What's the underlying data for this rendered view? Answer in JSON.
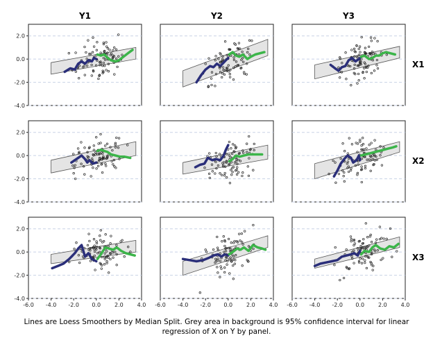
{
  "caption": {
    "line1": "Lines are Loess Smoothers by Median Split. Grey area in background is 95% confidence interval for linear",
    "line2": "regression of X on Y by panel."
  },
  "colors": {
    "low_split": "#2b2f7a",
    "high_split": "#3cb54a",
    "ci_fill": "#e4e4e4",
    "ci_stroke": "#555555",
    "grid": "#c8d2e6",
    "points": "#222222"
  },
  "chart_data": {
    "type": "scatter",
    "layout": "small-multiples 3x3",
    "column_labels": [
      "Y1",
      "Y2",
      "Y3"
    ],
    "row_labels": [
      "X1",
      "X2",
      "X3"
    ],
    "xlim": [
      -6,
      4
    ],
    "ylim": [
      -4,
      3
    ],
    "x_ticks": [
      "-6.0",
      "-4.0",
      "-2.0",
      "0.0",
      "2.0",
      "4.0"
    ],
    "y_ticks": [
      "-4.0",
      "-2.0",
      "0.0",
      "2.0"
    ],
    "x_tick_values": [
      -6,
      -4,
      -2,
      0,
      2,
      4
    ],
    "y_tick_values": [
      -4,
      -2,
      0,
      2
    ],
    "grid": "dashed horizontal",
    "panels": [
      {
        "row": 0,
        "col": 0,
        "ci_lower": [
          [
            -4,
            -1.3
          ],
          [
            3.5,
            0
          ]
        ],
        "ci_upper": [
          [
            -4,
            -0.3
          ],
          [
            3.5,
            1.0
          ]
        ],
        "low": [
          [
            -2.8,
            -1.1
          ],
          [
            -2.3,
            -0.8
          ],
          [
            -1.9,
            -0.9
          ],
          [
            -1.6,
            -0.4
          ],
          [
            -1.3,
            -0.2
          ],
          [
            -1.0,
            -0.4
          ],
          [
            -0.7,
            -0.1
          ],
          [
            -0.4,
            -0.2
          ],
          [
            -0.2,
            0.1
          ],
          [
            0.0,
            0.0
          ]
        ],
        "high": [
          [
            0.1,
            0.4
          ],
          [
            0.4,
            0.3
          ],
          [
            0.7,
            0.4
          ],
          [
            1.0,
            0.1
          ],
          [
            1.3,
            -0.1
          ],
          [
            1.7,
            -0.2
          ],
          [
            2.0,
            -0.1
          ],
          [
            2.4,
            0.2
          ],
          [
            2.8,
            0.5
          ],
          [
            3.2,
            0.8
          ]
        ],
        "seed": 11
      },
      {
        "row": 0,
        "col": 1,
        "ci_lower": [
          [
            -4,
            -2.4
          ],
          [
            3.5,
            0.3
          ]
        ],
        "ci_upper": [
          [
            -4,
            -1.0
          ],
          [
            3.5,
            1.7
          ]
        ],
        "low": [
          [
            -2.8,
            -2.0
          ],
          [
            -2.4,
            -1.4
          ],
          [
            -2.0,
            -0.9
          ],
          [
            -1.6,
            -0.6
          ],
          [
            -1.3,
            -0.7
          ],
          [
            -1.0,
            -0.4
          ],
          [
            -0.7,
            -0.6
          ],
          [
            -0.4,
            -0.3
          ],
          [
            -0.1,
            0.0
          ],
          [
            0.0,
            0.1
          ]
        ],
        "high": [
          [
            0.1,
            0.4
          ],
          [
            0.4,
            0.6
          ],
          [
            0.7,
            0.3
          ],
          [
            1.0,
            0.2
          ],
          [
            1.3,
            0.4
          ],
          [
            1.7,
            0.0
          ],
          [
            2.0,
            0.2
          ],
          [
            2.4,
            0.4
          ],
          [
            2.8,
            0.5
          ],
          [
            3.2,
            0.6
          ]
        ],
        "seed": 23
      },
      {
        "row": 0,
        "col": 2,
        "ci_lower": [
          [
            -4,
            -1.7
          ],
          [
            3.5,
            0.1
          ]
        ],
        "ci_upper": [
          [
            -4,
            -0.5
          ],
          [
            3.5,
            1.1
          ]
        ],
        "low": [
          [
            -2.6,
            -0.5
          ],
          [
            -2.2,
            -0.8
          ],
          [
            -1.9,
            -1.0
          ],
          [
            -1.6,
            -0.7
          ],
          [
            -1.3,
            -0.6
          ],
          [
            -1.0,
            -0.1
          ],
          [
            -0.7,
            0.1
          ],
          [
            -0.4,
            -0.2
          ],
          [
            -0.1,
            0.0
          ],
          [
            0.0,
            0.1
          ]
        ],
        "high": [
          [
            0.1,
            0.2
          ],
          [
            0.4,
            0.3
          ],
          [
            0.8,
            0.0
          ],
          [
            1.1,
            0.1
          ],
          [
            1.4,
            0.3
          ],
          [
            1.7,
            0.3
          ],
          [
            2.0,
            0.5
          ],
          [
            2.3,
            0.6
          ],
          [
            2.7,
            0.5
          ],
          [
            3.1,
            0.4
          ]
        ],
        "seed": 37
      },
      {
        "row": 1,
        "col": 0,
        "ci_lower": [
          [
            -4,
            -1.5
          ],
          [
            3.5,
            0.0
          ]
        ],
        "ci_upper": [
          [
            -4,
            -0.4
          ],
          [
            3.5,
            1.2
          ]
        ],
        "low": [
          [
            -2.2,
            -0.6
          ],
          [
            -1.9,
            -0.4
          ],
          [
            -1.6,
            -0.2
          ],
          [
            -1.3,
            0.0
          ],
          [
            -1.0,
            -0.3
          ],
          [
            -0.8,
            -0.6
          ],
          [
            -0.6,
            -0.4
          ],
          [
            -0.3,
            -0.7
          ],
          [
            0.0,
            -0.6
          ]
        ],
        "high": [
          [
            0.1,
            0.4
          ],
          [
            0.4,
            0.5
          ],
          [
            0.7,
            0.4
          ],
          [
            1.0,
            0.3
          ],
          [
            1.3,
            0.1
          ],
          [
            1.7,
            0.0
          ],
          [
            2.1,
            -0.1
          ],
          [
            2.5,
            -0.1
          ],
          [
            3.0,
            -0.2
          ]
        ],
        "seed": 41
      },
      {
        "row": 1,
        "col": 1,
        "ci_lower": [
          [
            -4,
            -1.6
          ],
          [
            3.5,
            -0.3
          ]
        ],
        "ci_upper": [
          [
            -4,
            -0.6
          ],
          [
            3.5,
            0.9
          ]
        ],
        "low": [
          [
            -2.9,
            -1.0
          ],
          [
            -2.5,
            -0.8
          ],
          [
            -2.1,
            -0.7
          ],
          [
            -1.8,
            -0.2
          ],
          [
            -1.4,
            -0.4
          ],
          [
            -1.1,
            -0.3
          ],
          [
            -0.7,
            -0.4
          ],
          [
            -0.4,
            0.0
          ],
          [
            -0.2,
            0.5
          ],
          [
            0.0,
            0.9
          ]
        ],
        "high": [
          [
            0.1,
            -0.5
          ],
          [
            0.4,
            -0.3
          ],
          [
            0.7,
            0.0
          ],
          [
            1.0,
            -0.1
          ],
          [
            1.4,
            0.0
          ],
          [
            1.8,
            0.1
          ],
          [
            2.2,
            0.1
          ],
          [
            2.6,
            0.1
          ],
          [
            3.0,
            0.1
          ]
        ],
        "seed": 53
      },
      {
        "row": 1,
        "col": 2,
        "ci_lower": [
          [
            -4,
            -2.0
          ],
          [
            3.5,
            0.3
          ]
        ],
        "ci_upper": [
          [
            -4,
            -0.7
          ],
          [
            3.5,
            1.2
          ]
        ],
        "low": [
          [
            -2.3,
            -1.8
          ],
          [
            -2.0,
            -1.3
          ],
          [
            -1.7,
            -0.7
          ],
          [
            -1.4,
            -0.3
          ],
          [
            -1.1,
            0.0
          ],
          [
            -0.8,
            -0.2
          ],
          [
            -0.6,
            -0.6
          ],
          [
            -0.3,
            -0.4
          ],
          [
            -0.1,
            0.0
          ],
          [
            0.0,
            -0.4
          ]
        ],
        "high": [
          [
            0.1,
            0.0
          ],
          [
            0.5,
            0.1
          ],
          [
            0.9,
            0.2
          ],
          [
            1.3,
            0.3
          ],
          [
            1.7,
            0.4
          ],
          [
            2.1,
            0.5
          ],
          [
            2.5,
            0.6
          ],
          [
            2.9,
            0.7
          ],
          [
            3.2,
            0.8
          ]
        ],
        "seed": 67
      },
      {
        "row": 2,
        "col": 0,
        "ci_lower": [
          [
            -4,
            -1.0
          ],
          [
            3.5,
            0.0
          ]
        ],
        "ci_upper": [
          [
            -4,
            -0.2
          ],
          [
            3.5,
            1.0
          ]
        ],
        "low": [
          [
            -3.9,
            -1.4
          ],
          [
            -3.4,
            -1.2
          ],
          [
            -2.9,
            -1.0
          ],
          [
            -2.4,
            -0.6
          ],
          [
            -1.9,
            -0.1
          ],
          [
            -1.6,
            0.3
          ],
          [
            -1.3,
            0.6
          ],
          [
            -1.0,
            -0.4
          ],
          [
            -0.7,
            -0.1
          ],
          [
            -0.4,
            -0.6
          ],
          [
            0.0,
            -0.8
          ]
        ],
        "high": [
          [
            0.1,
            -0.6
          ],
          [
            0.4,
            -0.2
          ],
          [
            0.8,
            0.4
          ],
          [
            1.1,
            0.3
          ],
          [
            1.5,
            0.2
          ],
          [
            1.8,
            0.4
          ],
          [
            2.2,
            0.1
          ],
          [
            2.6,
            -0.1
          ],
          [
            3.0,
            -0.2
          ],
          [
            3.4,
            -0.3
          ]
        ],
        "seed": 71
      },
      {
        "row": 2,
        "col": 1,
        "ci_lower": [
          [
            -4,
            -2.0
          ],
          [
            3.5,
            0.4
          ]
        ],
        "ci_upper": [
          [
            -4,
            -0.8
          ],
          [
            3.5,
            1.4
          ]
        ],
        "low": [
          [
            -4.0,
            -0.6
          ],
          [
            -3.4,
            -0.7
          ],
          [
            -2.8,
            -0.8
          ],
          [
            -2.2,
            -0.7
          ],
          [
            -1.7,
            -0.5
          ],
          [
            -1.3,
            -0.3
          ],
          [
            -0.9,
            -0.2
          ],
          [
            -0.6,
            -0.4
          ],
          [
            -0.3,
            -0.2
          ],
          [
            0.0,
            -0.3
          ]
        ],
        "high": [
          [
            0.1,
            -0.2
          ],
          [
            0.4,
            0.0
          ],
          [
            0.8,
            0.3
          ],
          [
            1.1,
            0.2
          ],
          [
            1.4,
            0.4
          ],
          [
            1.8,
            0.1
          ],
          [
            2.2,
            0.6
          ],
          [
            2.6,
            0.4
          ],
          [
            3.0,
            0.3
          ],
          [
            3.3,
            0.2
          ]
        ],
        "seed": 83
      },
      {
        "row": 2,
        "col": 2,
        "ci_lower": [
          [
            -4,
            -1.4
          ],
          [
            3.5,
            0.4
          ]
        ],
        "ci_upper": [
          [
            -4,
            -0.6
          ],
          [
            3.5,
            1.3
          ]
        ],
        "low": [
          [
            -4.0,
            -1.2
          ],
          [
            -3.5,
            -1.0
          ],
          [
            -3.0,
            -0.9
          ],
          [
            -2.5,
            -0.8
          ],
          [
            -2.0,
            -0.7
          ],
          [
            -1.6,
            -0.4
          ],
          [
            -1.2,
            -0.3
          ],
          [
            -0.8,
            -0.2
          ],
          [
            -0.5,
            -0.1
          ],
          [
            -0.2,
            -0.3
          ],
          [
            0.0,
            0.1
          ]
        ],
        "high": [
          [
            0.1,
            -0.2
          ],
          [
            0.4,
            0.1
          ],
          [
            0.8,
            0.0
          ],
          [
            1.1,
            0.4
          ],
          [
            1.4,
            0.6
          ],
          [
            1.8,
            0.3
          ],
          [
            2.2,
            0.2
          ],
          [
            2.6,
            0.5
          ],
          [
            3.0,
            0.4
          ],
          [
            3.4,
            0.7
          ]
        ],
        "seed": 97
      }
    ]
  }
}
